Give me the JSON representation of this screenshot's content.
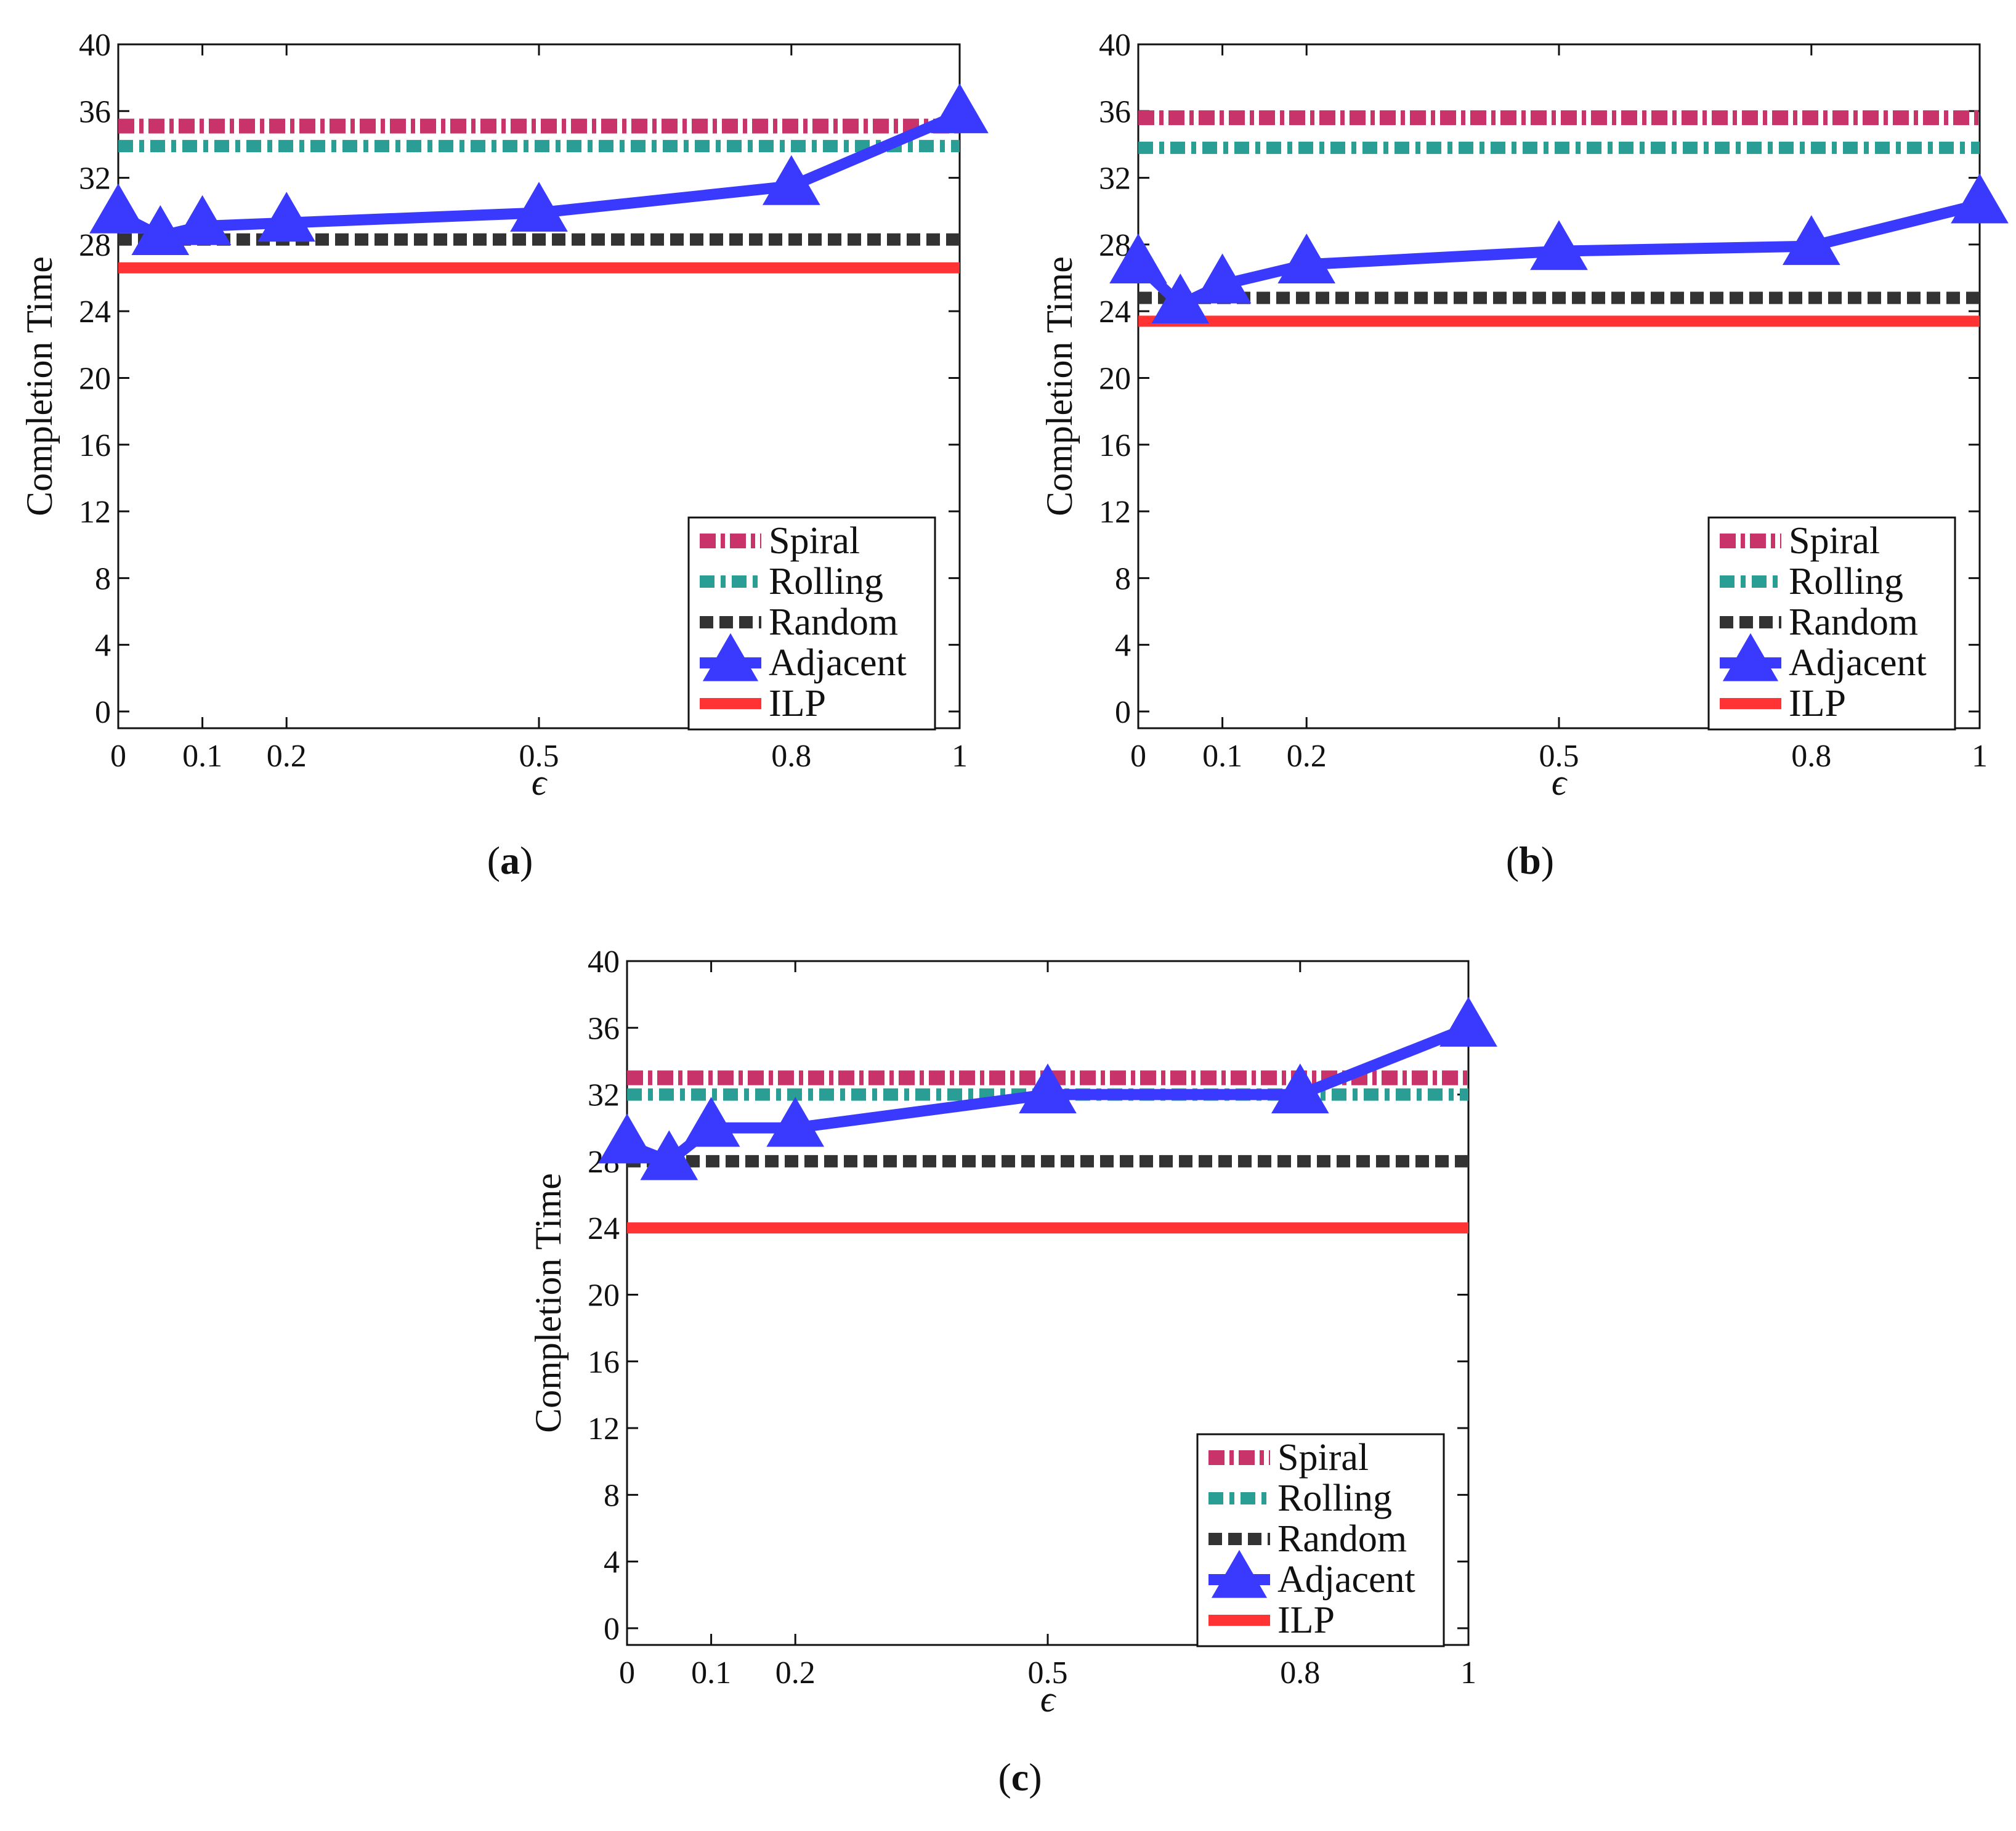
{
  "chart_data": [
    {
      "type": "line",
      "panel": "(a)",
      "caption": "a",
      "xlabel": "ϵ",
      "ylabel": "Completion Time",
      "xlim": [
        0,
        1
      ],
      "ylim": [
        -1,
        40
      ],
      "xticks": [
        0,
        0.1,
        0.2,
        0.5,
        0.8,
        1
      ],
      "xtick_labels": [
        "0",
        "0.1",
        "0.2",
        "0.5",
        "0.8",
        "1"
      ],
      "yticks": [
        0,
        4,
        8,
        12,
        16,
        20,
        24,
        28,
        32,
        36,
        40
      ],
      "ytick_labels": [
        "0",
        "4",
        "8",
        "12",
        "16",
        "20",
        "24",
        "28",
        "32",
        "36",
        "40"
      ],
      "legend_position": "lower-right",
      "series": [
        {
          "name": "Spiral",
          "style": "spiral",
          "color": "#c8336a",
          "x": [
            0,
            1
          ],
          "values": [
            35.1,
            35.1
          ]
        },
        {
          "name": "Rolling",
          "style": "rolling",
          "color": "#2a9d94",
          "x": [
            0,
            1
          ],
          "values": [
            33.9,
            33.9
          ]
        },
        {
          "name": "Random",
          "style": "random",
          "color": "#333333",
          "x": [
            0,
            1
          ],
          "values": [
            28.3,
            28.3
          ]
        },
        {
          "name": "Adjacent",
          "style": "adjacent",
          "color": "#3a3aff",
          "x": [
            0,
            0.05,
            0.1,
            0.2,
            0.5,
            0.8,
            1
          ],
          "values": [
            29.8,
            28.5,
            29.1,
            29.3,
            29.9,
            31.5,
            35.8
          ]
        },
        {
          "name": "ILP",
          "style": "ilp",
          "color": "#ff3333",
          "x": [
            0,
            1
          ],
          "values": [
            26.6,
            26.6
          ]
        }
      ]
    },
    {
      "type": "line",
      "panel": "(b)",
      "caption": "b",
      "xlabel": "ϵ",
      "ylabel": "Completion Time",
      "xlim": [
        0,
        1
      ],
      "ylim": [
        -1,
        40
      ],
      "xticks": [
        0,
        0.1,
        0.2,
        0.5,
        0.8,
        1
      ],
      "xtick_labels": [
        "0",
        "0.1",
        "0.2",
        "0.5",
        "0.8",
        "1"
      ],
      "yticks": [
        0,
        4,
        8,
        12,
        16,
        20,
        24,
        28,
        32,
        36,
        40
      ],
      "ytick_labels": [
        "0",
        "4",
        "8",
        "12",
        "16",
        "20",
        "24",
        "28",
        "32",
        "36",
        "40"
      ],
      "legend_position": "lower-right",
      "series": [
        {
          "name": "Spiral",
          "style": "spiral",
          "color": "#c8336a",
          "x": [
            0,
            1
          ],
          "values": [
            35.6,
            35.6
          ]
        },
        {
          "name": "Rolling",
          "style": "rolling",
          "color": "#2a9d94",
          "x": [
            0,
            1
          ],
          "values": [
            33.8,
            33.8
          ]
        },
        {
          "name": "Random",
          "style": "random",
          "color": "#333333",
          "x": [
            0,
            1
          ],
          "values": [
            24.8,
            24.8
          ]
        },
        {
          "name": "Adjacent",
          "style": "adjacent",
          "color": "#3a3aff",
          "x": [
            0,
            0.05,
            0.1,
            0.2,
            0.5,
            0.8,
            1
          ],
          "values": [
            26.8,
            24.4,
            25.6,
            26.8,
            27.6,
            27.9,
            30.4
          ]
        },
        {
          "name": "ILP",
          "style": "ilp",
          "color": "#ff3333",
          "x": [
            0,
            1
          ],
          "values": [
            23.4,
            23.4
          ]
        }
      ]
    },
    {
      "type": "line",
      "panel": "(c)",
      "caption": "c",
      "xlabel": "ϵ",
      "ylabel": "Completion Time",
      "xlim": [
        0,
        1
      ],
      "ylim": [
        -1,
        40
      ],
      "xticks": [
        0,
        0.1,
        0.2,
        0.5,
        0.8,
        1
      ],
      "xtick_labels": [
        "0",
        "0.1",
        "0.2",
        "0.5",
        "0.8",
        "1"
      ],
      "yticks": [
        0,
        4,
        8,
        12,
        16,
        20,
        24,
        28,
        32,
        36,
        40
      ],
      "ytick_labels": [
        "0",
        "4",
        "8",
        "12",
        "16",
        "20",
        "24",
        "28",
        "32",
        "36",
        "40"
      ],
      "legend_position": "lower-right",
      "series": [
        {
          "name": "Spiral",
          "style": "spiral",
          "color": "#c8336a",
          "x": [
            0,
            1
          ],
          "values": [
            33,
            33
          ]
        },
        {
          "name": "Rolling",
          "style": "rolling",
          "color": "#2a9d94",
          "x": [
            0,
            1
          ],
          "values": [
            32,
            32
          ]
        },
        {
          "name": "Random",
          "style": "random",
          "color": "#333333",
          "x": [
            0,
            1
          ],
          "values": [
            28,
            28
          ]
        },
        {
          "name": "Adjacent",
          "style": "adjacent",
          "color": "#3a3aff",
          "x": [
            0,
            0.05,
            0.1,
            0.2,
            0.5,
            0.8,
            1
          ],
          "values": [
            29,
            28,
            30,
            30,
            32,
            32,
            36
          ]
        },
        {
          "name": "ILP",
          "style": "ilp",
          "color": "#ff3333",
          "x": [
            0,
            1
          ],
          "values": [
            24,
            24
          ]
        }
      ]
    }
  ]
}
